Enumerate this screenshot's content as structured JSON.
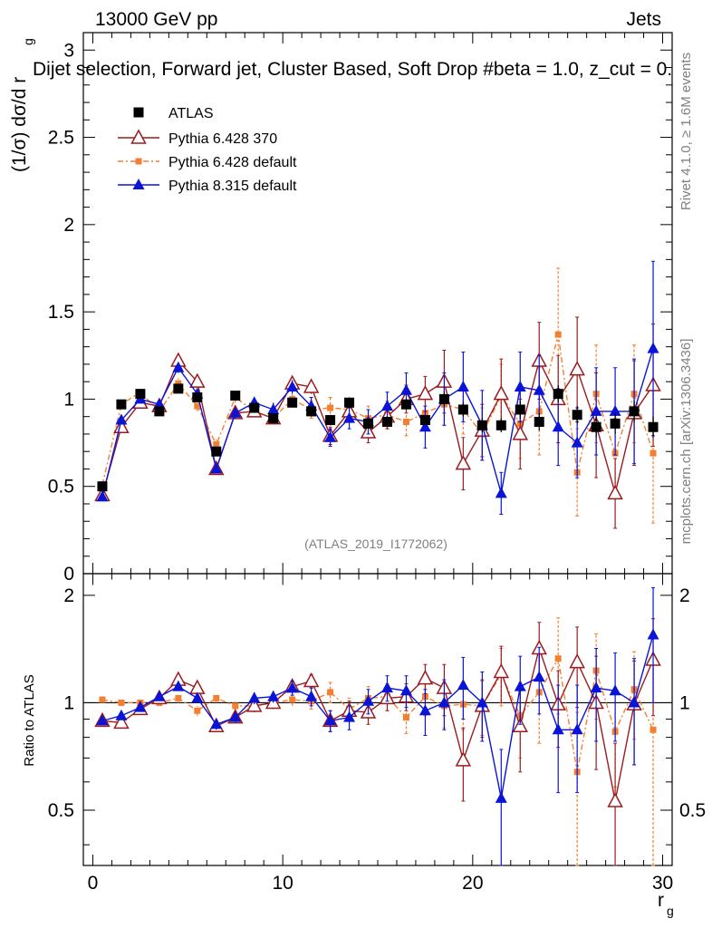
{
  "header": {
    "energy": "13000 GeV pp",
    "process": "Jets",
    "selection": "Dijet selection, Forward jet, Cluster Based, Soft Drop #beta = 1.0, z_cut = 0.",
    "watermark": "(ATLAS_2019_I1772062)",
    "rivet_note": "Rivet 4.1.0, ≥ 1.6M events",
    "mcplots_note": "mcplots.cern.ch [arXiv:1306.3436]"
  },
  "axes": {
    "xlabel_main": "r",
    "xlabel_sub": "g",
    "ylabel_top": "(1/σ) dσ/d r",
    "ylabel_top_sub": "g",
    "ylabel_bottom": "Ratio to ATLAS",
    "x_ticks": [
      "0",
      "10",
      "20",
      "30"
    ],
    "top_ticks": [
      "0",
      "0.5",
      "1",
      "1.5",
      "2",
      "2.5",
      "3"
    ],
    "ratio_ticks": [
      "0.5",
      "1",
      "2"
    ]
  },
  "colors": {
    "atlas": "#000000",
    "py6_370": "#9a1b1f",
    "py6_default": "#f47f31",
    "py8": "#0a14d6"
  },
  "chart_data": {
    "type": "scatter",
    "x": [
      0.5,
      1.5,
      2.5,
      3.5,
      4.5,
      5.5,
      6.5,
      7.5,
      8.5,
      9.5,
      10.5,
      11.5,
      12.5,
      13.5,
      14.5,
      15.5,
      16.5,
      17.5,
      18.5,
      19.5,
      20.5,
      21.5,
      22.5,
      23.5,
      24.5,
      25.5,
      26.5,
      27.5,
      28.5,
      29.5
    ],
    "xlim": [
      -0.5,
      30.5
    ],
    "ylim": [
      0,
      3.1
    ],
    "ratio_ylim": [
      0.35,
      2.3
    ],
    "legend": [
      "ATLAS",
      "Pythia 6.428 370",
      "Pythia 6.428 default",
      "Pythia 8.315 default"
    ],
    "series": [
      {
        "name": "ATLAS",
        "values": [
          0.5,
          0.97,
          1.03,
          0.93,
          1.06,
          1.01,
          0.7,
          1.02,
          0.95,
          0.89,
          0.98,
          0.93,
          0.88,
          0.98,
          0.86,
          0.87,
          0.97,
          0.88,
          1.0,
          0.94,
          0.85,
          0.85,
          0.94,
          0.87,
          1.03,
          0.91,
          0.84,
          0.86,
          0.93,
          0.84
        ],
        "ratio": [
          1,
          1,
          1,
          1,
          1,
          1,
          1,
          1,
          1,
          1,
          1,
          1,
          1,
          1,
          1,
          1,
          1,
          1,
          1,
          1,
          1,
          1,
          1,
          1,
          1,
          1,
          1,
          1,
          1,
          1
        ],
        "err": [
          0.02,
          0.02,
          0.02,
          0.02,
          0.02,
          0.02,
          0.02,
          0.02,
          0.02,
          0.02,
          0.02,
          0.03,
          0.03,
          0.03,
          0.03,
          0.03,
          0.03,
          0.03,
          0.04,
          0.04,
          0.04,
          0.04,
          0.05,
          0.05,
          0.05,
          0.05,
          0.06,
          0.06,
          0.06,
          0.06
        ]
      },
      {
        "name": "Pythia 6.428 370",
        "values": [
          0.45,
          0.84,
          0.98,
          0.96,
          1.22,
          1.1,
          0.6,
          0.92,
          0.93,
          0.89,
          1.09,
          1.07,
          0.79,
          0.93,
          0.81,
          0.9,
          1.0,
          1.03,
          1.1,
          0.63,
          0.82,
          1.03,
          0.8,
          1.22,
          1.0,
          1.17,
          0.85,
          0.46,
          0.92,
          1.08
        ],
        "ratio": [
          0.89,
          0.88,
          0.96,
          1.03,
          1.16,
          1.1,
          0.86,
          0.91,
          0.98,
          1.0,
          1.11,
          1.15,
          0.89,
          0.95,
          0.94,
          1.03,
          1.04,
          1.17,
          1.1,
          0.69,
          0.98,
          1.22,
          0.86,
          1.42,
          0.99,
          1.3,
          1.0,
          0.53,
          0.99,
          1.32
        ],
        "err": [
          0.01,
          0.02,
          0.02,
          0.02,
          0.03,
          0.03,
          0.02,
          0.02,
          0.03,
          0.03,
          0.04,
          0.04,
          0.05,
          0.05,
          0.06,
          0.07,
          0.08,
          0.1,
          0.18,
          0.15,
          0.15,
          0.2,
          0.2,
          0.22,
          0.25,
          0.3,
          0.3,
          0.2,
          0.3,
          0.35
        ],
        "ratio_err": [
          0.02,
          0.02,
          0.02,
          0.02,
          0.03,
          0.03,
          0.03,
          0.03,
          0.04,
          0.04,
          0.04,
          0.05,
          0.06,
          0.06,
          0.07,
          0.08,
          0.09,
          0.11,
          0.18,
          0.16,
          0.18,
          0.22,
          0.22,
          0.26,
          0.24,
          0.33,
          0.35,
          0.24,
          0.32,
          0.4
        ]
      },
      {
        "name": "Pythia 6.428 default",
        "values": [
          0.51,
          0.97,
          1.04,
          0.93,
          1.09,
          0.96,
          0.74,
          1.01,
          0.93,
          0.89,
          1.0,
          0.94,
          0.95,
          0.94,
          0.89,
          0.91,
          0.87,
          0.92,
          0.97,
          0.94,
          0.8,
          1.02,
          0.86,
          0.93,
          1.37,
          0.58,
          1.03,
          0.69,
          1.03,
          0.69
        ],
        "ratio": [
          1.02,
          1.0,
          1.0,
          1.0,
          1.03,
          0.95,
          1.03,
          0.98,
          0.98,
          1.0,
          1.02,
          1.01,
          1.07,
          0.96,
          1.03,
          1.04,
          0.91,
          1.04,
          0.98,
          0.99,
          0.98,
          1.2,
          0.92,
          1.07,
          1.33,
          0.64,
          1.23,
          0.83,
          1.09,
          0.84
        ],
        "err": [
          0.02,
          0.02,
          0.02,
          0.02,
          0.03,
          0.03,
          0.03,
          0.03,
          0.03,
          0.03,
          0.04,
          0.05,
          0.06,
          0.06,
          0.07,
          0.08,
          0.08,
          0.1,
          0.12,
          0.14,
          0.15,
          0.18,
          0.2,
          0.25,
          0.38,
          0.25,
          0.28,
          0.2,
          0.28,
          0.4
        ],
        "ratio_err": [
          0.02,
          0.02,
          0.02,
          0.02,
          0.03,
          0.03,
          0.03,
          0.03,
          0.03,
          0.03,
          0.04,
          0.05,
          0.07,
          0.07,
          0.08,
          0.09,
          0.09,
          0.12,
          0.13,
          0.15,
          0.17,
          0.22,
          0.22,
          0.3,
          0.4,
          0.3,
          0.33,
          0.25,
          0.3,
          0.5
        ]
      },
      {
        "name": "Pythia 8.315 default",
        "values": [
          0.44,
          0.88,
          1.0,
          0.97,
          1.18,
          1.03,
          0.6,
          0.92,
          0.98,
          0.94,
          1.07,
          0.96,
          0.78,
          0.89,
          0.87,
          0.96,
          1.05,
          0.84,
          1.0,
          1.07,
          0.85,
          0.46,
          1.07,
          1.05,
          0.84,
          0.75,
          0.93,
          0.93,
          0.93,
          1.29
        ],
        "ratio": [
          0.89,
          0.92,
          0.97,
          1.04,
          1.11,
          1.03,
          0.87,
          0.91,
          1.03,
          1.04,
          1.1,
          1.04,
          0.89,
          0.91,
          1.01,
          1.1,
          1.08,
          0.95,
          1.0,
          1.12,
          1.0,
          0.54,
          1.11,
          1.18,
          0.84,
          0.84,
          1.1,
          1.08,
          1.0,
          1.55
        ],
        "err": [
          0.01,
          0.02,
          0.02,
          0.02,
          0.03,
          0.03,
          0.02,
          0.03,
          0.03,
          0.04,
          0.04,
          0.05,
          0.05,
          0.06,
          0.07,
          0.08,
          0.1,
          0.12,
          0.15,
          0.2,
          0.2,
          0.12,
          0.2,
          0.2,
          0.22,
          0.2,
          0.25,
          0.25,
          0.3,
          0.5
        ],
        "ratio_err": [
          0.02,
          0.02,
          0.02,
          0.02,
          0.03,
          0.03,
          0.03,
          0.03,
          0.04,
          0.04,
          0.05,
          0.06,
          0.06,
          0.07,
          0.08,
          0.09,
          0.11,
          0.14,
          0.16,
          0.22,
          0.22,
          0.2,
          0.24,
          0.25,
          0.28,
          0.28,
          0.32,
          0.3,
          0.33,
          0.55
        ]
      }
    ]
  }
}
